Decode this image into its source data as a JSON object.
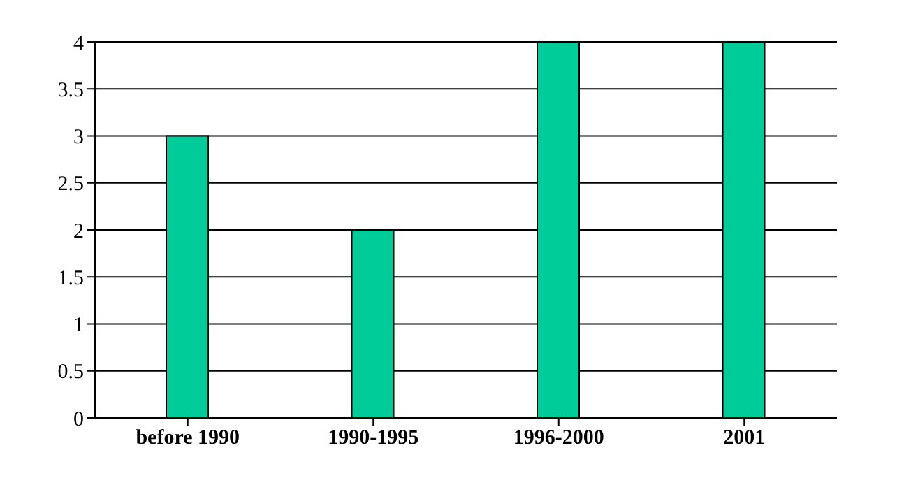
{
  "chart_data": {
    "type": "bar",
    "categories": [
      "before 1990",
      "1990-1995",
      "1996-2000",
      "2001"
    ],
    "values": [
      3,
      2,
      4,
      4
    ],
    "color": "#00cc99",
    "ylim": [
      0,
      4
    ],
    "yticks": [
      0,
      0.5,
      1,
      1.5,
      2,
      2.5,
      3,
      3.5,
      4
    ],
    "grid": "y"
  }
}
